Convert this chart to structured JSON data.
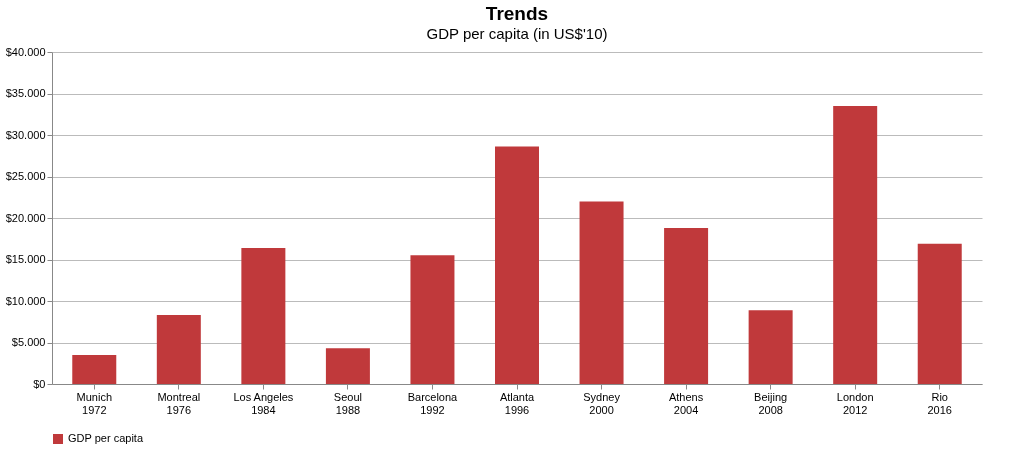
{
  "chart_data": {
    "type": "bar",
    "title": "Trends",
    "subtitle": "GDP per capita (in US$'10)",
    "categories": [
      "Munich\n1972",
      "Montreal\n1976",
      "Los Angeles\n1984",
      "Seoul\n1988",
      "Barcelona\n1992",
      "Atlanta\n1996",
      "Sydney\n2000",
      "Athens\n2004",
      "Beijing\n2008",
      "London\n2012",
      "Rio\n2016"
    ],
    "series": [
      {
        "name": "GDP per capita",
        "color": "#c0393b",
        "values": [
          3500,
          8300,
          16400,
          4300,
          15500,
          28600,
          22000,
          18800,
          8900,
          33500,
          16900
        ]
      }
    ],
    "ylim": [
      0,
      40000
    ],
    "yticks": [
      {
        "value": 0,
        "label": "$0"
      },
      {
        "value": 5000,
        "label": "$5.000"
      },
      {
        "value": 10000,
        "label": "$10.000"
      },
      {
        "value": 15000,
        "label": "$15.000"
      },
      {
        "value": 20000,
        "label": "$20.000"
      },
      {
        "value": 25000,
        "label": "$25.000"
      },
      {
        "value": 30000,
        "label": "$30.000"
      },
      {
        "value": 35000,
        "label": "$35.000"
      },
      {
        "value": 40000,
        "label": "$40.000"
      }
    ],
    "grid": "y",
    "legend": "bottom"
  }
}
